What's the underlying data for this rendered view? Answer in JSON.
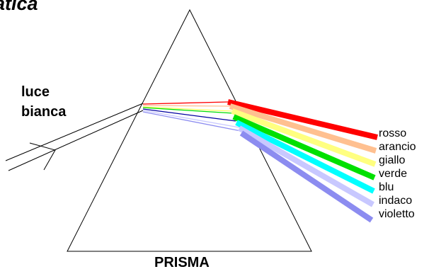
{
  "title_fragment": "atica",
  "prism_label": "PRISMA",
  "white_light_label": [
    "luce",
    "bianca"
  ],
  "spectrum": [
    {
      "name": "rosso",
      "color": "#ff0000"
    },
    {
      "name": "arancio",
      "color": "#ffc090"
    },
    {
      "name": "giallo",
      "color": "#ffff80"
    },
    {
      "name": "verde",
      "color": "#00e000"
    },
    {
      "name": "blu",
      "color": "#00ffff"
    },
    {
      "name": "indaco",
      "color": "#c8c8ff"
    },
    {
      "name": "violetto",
      "color": "#8c8cf0"
    }
  ],
  "colors": {
    "outline": "#000000",
    "inside_blue": "#0000a0"
  }
}
